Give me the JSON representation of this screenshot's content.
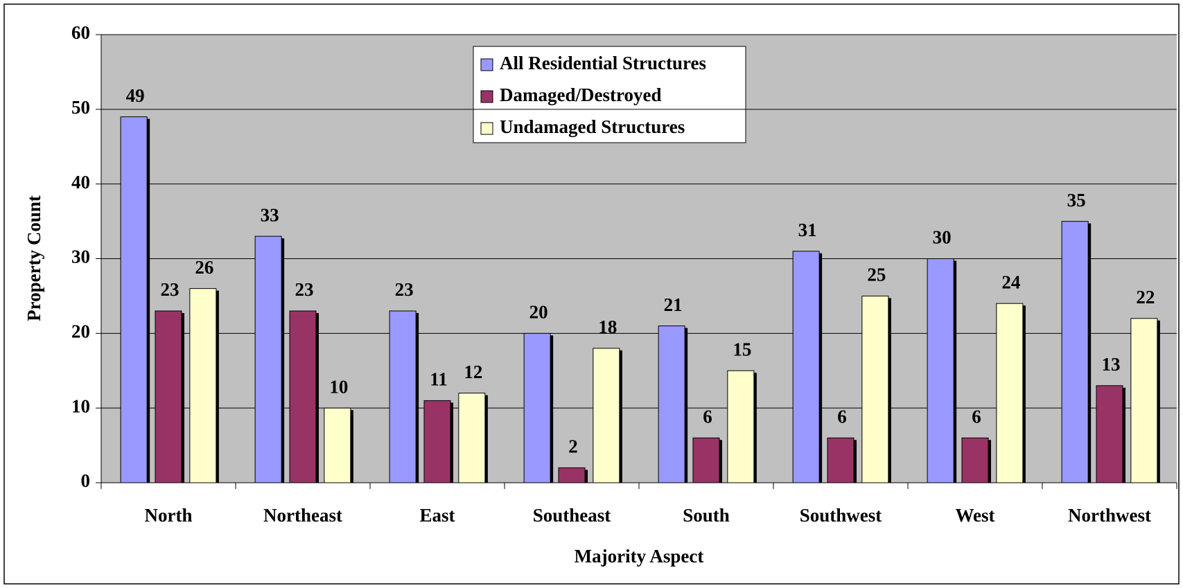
{
  "chart_data": {
    "type": "bar",
    "x_label": "Majority Aspect",
    "y_label": "Property Count",
    "categories": [
      "North",
      "Northeast",
      "East",
      "Southeast",
      "South",
      "Southwest",
      "West",
      "Northwest"
    ],
    "series": [
      {
        "name": "All Residential Structures",
        "color": "#9999ff",
        "values": [
          49,
          33,
          23,
          20,
          21,
          31,
          30,
          35
        ]
      },
      {
        "name": "Damaged/Destroyed",
        "color": "#993366",
        "values": [
          23,
          23,
          11,
          2,
          6,
          6,
          6,
          13
        ]
      },
      {
        "name": "Undamaged Structures",
        "color": "#ffffcc",
        "values": [
          26,
          10,
          12,
          18,
          15,
          25,
          24,
          22
        ]
      }
    ],
    "ylim": [
      0,
      60
    ],
    "yticks": [
      0,
      10,
      20,
      30,
      40,
      50,
      60
    ],
    "grid": true
  }
}
